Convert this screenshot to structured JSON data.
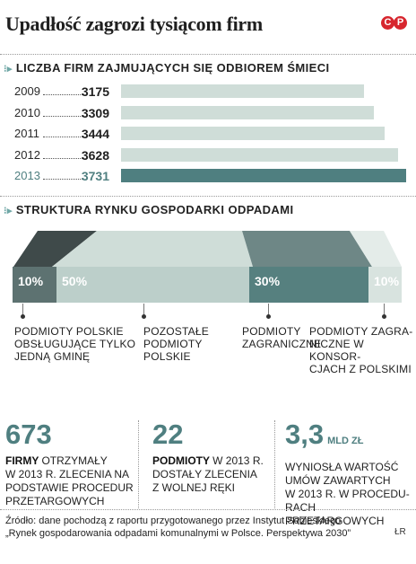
{
  "title": "Upadłość zagrozi tysiącom firm",
  "logo": {
    "text": "CP"
  },
  "section1": {
    "heading": "Liczba firm zajmujących się odbiorem śmieci"
  },
  "section2": {
    "heading": "Struktura rynku gospodarki odpadami"
  },
  "colors": {
    "accent": "#4f7f80",
    "bar_light": "#cfddd8",
    "logo_red": "#d7262e"
  },
  "chart_data": [
    {
      "type": "bar",
      "orientation": "horizontal",
      "title": "Liczba firm zajmujących się odbiorem śmieci",
      "categories": [
        "2009",
        "2010",
        "2011",
        "2012",
        "2013"
      ],
      "values": [
        3175,
        3309,
        3444,
        3628,
        3731
      ],
      "highlight": "2013"
    },
    {
      "type": "bar",
      "orientation": "stacked-horizontal",
      "title": "Struktura rynku gospodarki odpadami",
      "categories": [
        "Podmioty polskie obsługujące tylko jedną gminę",
        "Pozostałe podmioty polskie",
        "Podmioty zagraniczne",
        "Podmioty zagraniczne w konsorcjach z polskimi"
      ],
      "values": [
        10,
        50,
        30,
        10
      ],
      "value_labels": [
        "10%",
        "50%",
        "30%",
        "10%"
      ]
    }
  ],
  "market_labels": [
    [
      "Podmioty polskie",
      "obsługujące tylko",
      "jedną gminę"
    ],
    [
      "Pozostałe",
      "podmioty",
      "polskie"
    ],
    [
      "Podmioty",
      "zagraniczne"
    ],
    [
      "Podmioty zagra-",
      "niczne w konsor-",
      "cjach z polskimi"
    ]
  ],
  "stats": [
    {
      "value": "673",
      "unit": "",
      "bold": "Firmy",
      "lines": [
        "otrzymały",
        "w 2013 r. zlecenia na",
        "podstawie procedur",
        "przetargowych"
      ]
    },
    {
      "value": "22",
      "unit": "",
      "bold": "Podmioty",
      "lines": [
        "w 2013 r.",
        "dostały zlecenia",
        "z wolnej ręki"
      ]
    },
    {
      "value": "3,3",
      "unit": "mld zł",
      "bold": "",
      "lines": [
        "wyniosła wartość",
        "umów zawartych",
        "w 2013 r. w procedu-",
        "rach przetargowych"
      ]
    }
  ],
  "source": {
    "line1": "Źródło: dane pochodzą z raportu przygotowanego przez Instytut Sobieskiego",
    "line2": "„Rynek gospodarowania odpadami komunalnymi w Polsce. Perspektywa 2030”"
  },
  "signature": "ŁR"
}
